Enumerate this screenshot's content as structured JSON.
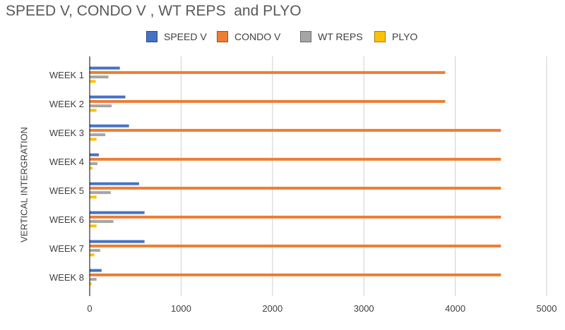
{
  "chart_data": {
    "type": "bar",
    "orientation": "horizontal",
    "title": "SPEED V, CONDO V , WT REPS  and PLYO",
    "ylabel": "VERTICAL INTERGRATION",
    "xlabel": "",
    "xlim": [
      0,
      5000
    ],
    "xticks": [
      0,
      1000,
      2000,
      3000,
      4000,
      5000
    ],
    "grid": "vertical",
    "legend": "top",
    "categories": [
      "WEEK 1",
      "WEEK 2",
      "WEEK 3",
      "WEEK 4",
      "WEEK 5",
      "WEEK 6",
      "WEEK 7",
      "WEEK 8"
    ],
    "series": [
      {
        "name": "SPEED V",
        "color": "#4472C4",
        "values": [
          330,
          390,
          430,
          100,
          540,
          600,
          600,
          130
        ]
      },
      {
        "name": "CONDO V",
        "color": "#ED7D31",
        "values": [
          3890,
          3890,
          4500,
          4500,
          4500,
          4500,
          4500,
          4500
        ]
      },
      {
        "name": "WT REPS",
        "color": "#A5A5A5",
        "values": [
          205,
          240,
          170,
          85,
          230,
          260,
          115,
          75
        ]
      },
      {
        "name": "PLYO",
        "color": "#FFC000",
        "values": [
          65,
          75,
          75,
          30,
          75,
          75,
          50,
          20
        ]
      }
    ]
  }
}
